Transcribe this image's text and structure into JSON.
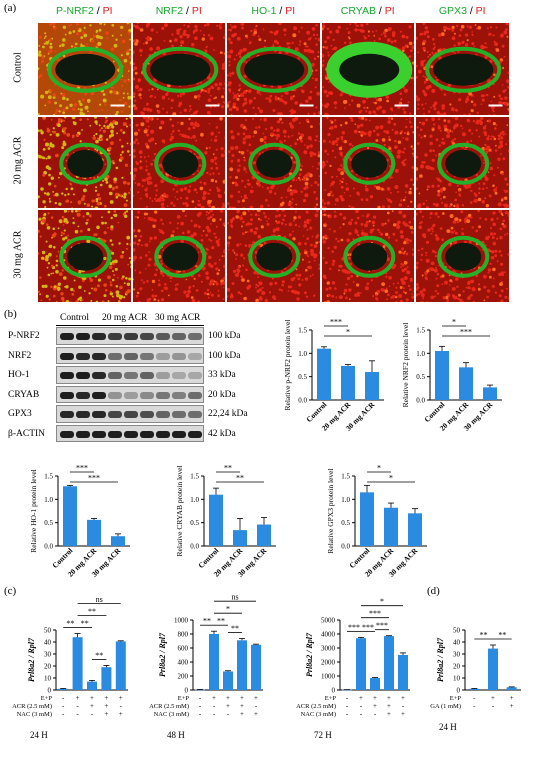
{
  "panels": {
    "a": "(a)",
    "b": "(b)",
    "c": "(c)",
    "d": "(d)"
  },
  "if_panel": {
    "columns": [
      {
        "marker": "P-NRF2",
        "sep": " / ",
        "counter": "PI"
      },
      {
        "marker": "NRF2",
        "sep": " / ",
        "counter": "PI"
      },
      {
        "marker": "HO-1",
        "sep": " / ",
        "counter": "PI"
      },
      {
        "marker": "CRYAB",
        "sep": " / ",
        "counter": "PI"
      },
      {
        "marker": "GPX3",
        "sep": " / ",
        "counter": "PI"
      }
    ],
    "rows": [
      "Control",
      "20 mg ACR",
      "30 mg ACR"
    ]
  },
  "western": {
    "groups": [
      "Control",
      "20 mg ACR",
      "30 mg ACR"
    ],
    "proteins": [
      {
        "name": "P-NRF2",
        "kda": "100 kDa"
      },
      {
        "name": "NRF2",
        "kda": "100 kDa"
      },
      {
        "name": "HO-1",
        "kda": "33 kDa"
      },
      {
        "name": "CRYAB",
        "kda": "20 kDa"
      },
      {
        "name": "GPX3",
        "kda": "22,24 kDa"
      },
      {
        "name": "β-ACTIN",
        "kda": "42 kDa"
      }
    ]
  },
  "chart_data": [
    {
      "type": "bar",
      "categories": [
        "Control",
        "20 mg ACR",
        "30 mg ACR"
      ],
      "values": [
        1.1,
        0.73,
        0.6
      ],
      "errors": [
        0.04,
        0.03,
        0.24
      ],
      "ylabel": "Relative p-NRF2 protein level",
      "ylim": [
        0,
        1.5
      ],
      "yticks": [
        "0.0",
        "0.5",
        "1.0",
        "1.5"
      ],
      "sig": [
        {
          "from": 0,
          "to": 1,
          "label": "***"
        },
        {
          "from": 0,
          "to": 2,
          "label": "*"
        }
      ],
      "color": "#2b8be0"
    },
    {
      "type": "bar",
      "categories": [
        "Control",
        "20 mg ACR",
        "30 mg ACR"
      ],
      "values": [
        1.05,
        0.7,
        0.27
      ],
      "errors": [
        0.1,
        0.1,
        0.05
      ],
      "ylabel": "Relative NRF2 protein level",
      "ylim": [
        0,
        1.5
      ],
      "yticks": [
        "0.0",
        "0.5",
        "1.0",
        "1.5"
      ],
      "sig": [
        {
          "from": 0,
          "to": 1,
          "label": "*"
        },
        {
          "from": 0,
          "to": 2,
          "label": "***"
        }
      ],
      "color": "#2b8be0"
    },
    {
      "type": "bar",
      "categories": [
        "Control",
        "20 mg ACR",
        "30 mg ACR"
      ],
      "values": [
        1.28,
        0.56,
        0.21
      ],
      "errors": [
        0.02,
        0.03,
        0.05
      ],
      "ylabel": "Relative HO-1 protein level",
      "ylim": [
        0,
        1.5
      ],
      "yticks": [
        "0.0",
        "0.5",
        "1.0",
        "1.5"
      ],
      "sig": [
        {
          "from": 0,
          "to": 1,
          "label": "***"
        },
        {
          "from": 0,
          "to": 2,
          "label": "***"
        }
      ],
      "color": "#2b8be0"
    },
    {
      "type": "bar",
      "categories": [
        "Control",
        "20 mg ACR",
        "30 mg ACR"
      ],
      "values": [
        1.1,
        0.34,
        0.46
      ],
      "errors": [
        0.14,
        0.25,
        0.15
      ],
      "ylabel": "Relative CRYAB protein level",
      "ylim": [
        0,
        1.5
      ],
      "yticks": [
        "0.0",
        "0.5",
        "1.0",
        "1.5"
      ],
      "sig": [
        {
          "from": 0,
          "to": 1,
          "label": "**"
        },
        {
          "from": 0,
          "to": 2,
          "label": "**"
        }
      ],
      "color": "#2b8be0"
    },
    {
      "type": "bar",
      "categories": [
        "Control",
        "20 mg ACR",
        "30 mg ACR"
      ],
      "values": [
        1.15,
        0.82,
        0.7
      ],
      "errors": [
        0.15,
        0.1,
        0.1
      ],
      "ylabel": "Relative GPX3 protein level",
      "ylim": [
        0,
        1.5
      ],
      "yticks": [
        "0.0",
        "0.5",
        "1.0",
        "1.5"
      ],
      "sig": [
        {
          "from": 0,
          "to": 1,
          "label": "*"
        },
        {
          "from": 0,
          "to": 2,
          "label": "*"
        }
      ],
      "color": "#2b8be0"
    },
    {
      "type": "bar",
      "categories": [
        "1",
        "2",
        "3",
        "4",
        "5"
      ],
      "values": [
        1,
        44,
        7,
        19,
        40.5
      ],
      "errors": [
        0.3,
        3,
        1,
        1.5,
        0.5
      ],
      "ylabel": "Prl8a2 / Rpl7",
      "ylim": [
        0,
        50
      ],
      "yticks": [
        "0",
        "10",
        "20",
        "30",
        "40",
        "50"
      ],
      "sig": [
        {
          "from": 0,
          "to": 1,
          "label": "**"
        },
        {
          "from": 1,
          "to": 2,
          "label": "**"
        },
        {
          "from": 1,
          "to": 3,
          "label": "**"
        },
        {
          "from": 2,
          "to": 3,
          "label": "**"
        },
        {
          "from": 1,
          "to": 4,
          "label": "ns"
        }
      ],
      "treatments": [
        {
          "label": "E+P",
          "marks": [
            "-",
            "+",
            "+",
            "+",
            "+"
          ]
        },
        {
          "label": "ACR (2.5 mM)",
          "marks": [
            "-",
            "-",
            "+",
            "+",
            "-"
          ]
        },
        {
          "label": "NAC (3 mM)",
          "marks": [
            "-",
            "-",
            "-",
            "+",
            "+"
          ]
        }
      ],
      "time": "24 H",
      "color": "#2b8be0"
    },
    {
      "type": "bar",
      "categories": [
        "1",
        "2",
        "3",
        "4",
        "5"
      ],
      "values": [
        5,
        800,
        265,
        710,
        645
      ],
      "errors": [
        2,
        40,
        10,
        25,
        10
      ],
      "ylabel": "Prl8a2 / Rpl7",
      "ylim": [
        0,
        1000
      ],
      "yticks": [
        "0",
        "200",
        "400",
        "600",
        "800",
        "1000"
      ],
      "sig": [
        {
          "from": 0,
          "to": 1,
          "label": "**"
        },
        {
          "from": 1,
          "to": 2,
          "label": "**"
        },
        {
          "from": 1,
          "to": 3,
          "label": "*"
        },
        {
          "from": 2,
          "to": 3,
          "label": "**"
        },
        {
          "from": 1,
          "to": 4,
          "label": "ns"
        }
      ],
      "treatments": [
        {
          "label": "E+P",
          "marks": [
            "-",
            "+",
            "+",
            "+",
            "+"
          ]
        },
        {
          "label": "ACR (2.5 mM)",
          "marks": [
            "-",
            "-",
            "+",
            "+",
            "-"
          ]
        },
        {
          "label": "NAC (3 mM)",
          "marks": [
            "-",
            "-",
            "-",
            "+",
            "+"
          ]
        }
      ],
      "time": "48 H",
      "color": "#2b8be0"
    },
    {
      "type": "bar",
      "categories": [
        "1",
        "2",
        "3",
        "4",
        "5"
      ],
      "values": [
        20,
        3700,
        850,
        3850,
        2500
      ],
      "errors": [
        5,
        60,
        40,
        30,
        150
      ],
      "ylabel": "Prl8a2 / Rpl7",
      "ylim": [
        0,
        5000
      ],
      "yticks": [
        "0",
        "1000",
        "2000",
        "3000",
        "4000",
        "5000"
      ],
      "sig": [
        {
          "from": 0,
          "to": 1,
          "label": "***"
        },
        {
          "from": 1,
          "to": 2,
          "label": "***"
        },
        {
          "from": 1,
          "to": 3,
          "label": "***"
        },
        {
          "from": 2,
          "to": 3,
          "label": "***"
        },
        {
          "from": 1,
          "to": 4,
          "label": "*"
        }
      ],
      "treatments": [
        {
          "label": "E+P",
          "marks": [
            "-",
            "+",
            "+",
            "+",
            "+"
          ]
        },
        {
          "label": "ACR (2.5 mM)",
          "marks": [
            "-",
            "-",
            "+",
            "+",
            "-"
          ]
        },
        {
          "label": "NAC (3 mM)",
          "marks": [
            "-",
            "-",
            "-",
            "+",
            "+"
          ]
        }
      ],
      "time": "72 H",
      "color": "#2b8be0"
    },
    {
      "type": "bar",
      "categories": [
        "1",
        "2",
        "3"
      ],
      "values": [
        1,
        34.5,
        2.3
      ],
      "errors": [
        0.3,
        3,
        0.3
      ],
      "ylabel": "Prl8a2 / Rpl7",
      "ylim": [
        0,
        50
      ],
      "yticks": [
        "0",
        "10",
        "20",
        "30",
        "40",
        "50"
      ],
      "sig": [
        {
          "from": 0,
          "to": 1,
          "label": "**"
        },
        {
          "from": 1,
          "to": 2,
          "label": "**"
        }
      ],
      "treatments": [
        {
          "label": "E+P",
          "marks": [
            "-",
            "+",
            "+"
          ]
        },
        {
          "label": "GA (1 mM)",
          "marks": [
            "-",
            "-",
            "+"
          ]
        }
      ],
      "time": "24 H",
      "color": "#2b8be0"
    }
  ]
}
